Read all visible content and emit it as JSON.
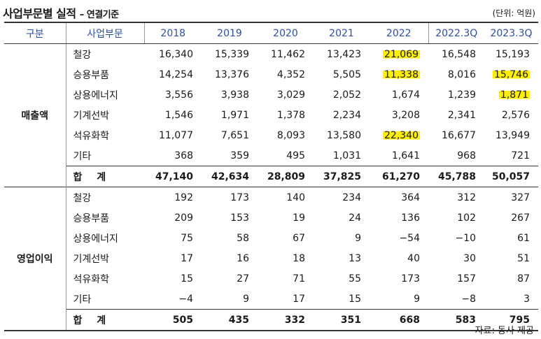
{
  "header": {
    "title": "사업부문별 실적",
    "subtitle": "– 연결기준",
    "unit": "(단위: 억원)"
  },
  "table": {
    "columns": [
      "구분",
      "사업부문",
      "2018",
      "2019",
      "2020",
      "2021",
      "2022",
      "2022.3Q",
      "2023.3Q"
    ],
    "groups": [
      {
        "label": "매출액",
        "rows": [
          {
            "segment": "철강",
            "values": [
              "16,340",
              "15,339",
              "11,462",
              "13,423",
              "21,069",
              "16,548",
              "15,193"
            ],
            "highlight": [
              4
            ]
          },
          {
            "segment": "승용부품",
            "values": [
              "14,254",
              "13,376",
              "4,352",
              "5,505",
              "11,338",
              "8,016",
              "15,746"
            ],
            "highlight": [
              4,
              6
            ]
          },
          {
            "segment": "상용에너지",
            "values": [
              "3,556",
              "3,938",
              "3,029",
              "2,052",
              "1,674",
              "1,239",
              "1,871"
            ],
            "highlight": [
              6
            ]
          },
          {
            "segment": "기계선박",
            "values": [
              "1,546",
              "1,971",
              "1,378",
              "2,234",
              "3,208",
              "2,341",
              "2,576"
            ],
            "highlight": []
          },
          {
            "segment": "석유화학",
            "values": [
              "11,077",
              "7,651",
              "8,093",
              "13,580",
              "22,340",
              "16,677",
              "13,949"
            ],
            "highlight": [
              4
            ]
          },
          {
            "segment": "기타",
            "values": [
              "368",
              "359",
              "495",
              "1,031",
              "1,641",
              "968",
              "721"
            ],
            "highlight": []
          }
        ],
        "total": {
          "segment": "합 계",
          "values": [
            "47,140",
            "42,634",
            "28,809",
            "37,825",
            "61,270",
            "45,788",
            "50,057"
          ]
        }
      },
      {
        "label": "영업이익",
        "rows": [
          {
            "segment": "철강",
            "values": [
              "192",
              "173",
              "140",
              "234",
              "364",
              "312",
              "327"
            ],
            "highlight": []
          },
          {
            "segment": "승용부품",
            "values": [
              "209",
              "153",
              "19",
              "24",
              "136",
              "102",
              "267"
            ],
            "highlight": []
          },
          {
            "segment": "상용에너지",
            "values": [
              "75",
              "58",
              "67",
              "9",
              "−54",
              "−10",
              "61"
            ],
            "highlight": []
          },
          {
            "segment": "기계선박",
            "values": [
              "17",
              "16",
              "18",
              "13",
              "40",
              "30",
              "51"
            ],
            "highlight": []
          },
          {
            "segment": "석유화학",
            "values": [
              "15",
              "27",
              "71",
              "55",
              "173",
              "157",
              "87"
            ],
            "highlight": []
          },
          {
            "segment": "기타",
            "values": [
              "−4",
              "9",
              "17",
              "15",
              "9",
              "−8",
              "3"
            ],
            "highlight": []
          }
        ],
        "total": {
          "segment": "합 계",
          "values": [
            "505",
            "435",
            "332",
            "351",
            "668",
            "583",
            "795"
          ]
        }
      }
    ]
  },
  "footer": {
    "source": "자료: 동사 제공"
  },
  "colors": {
    "header_text": "#2e4fa3",
    "highlight": "#fff000"
  }
}
